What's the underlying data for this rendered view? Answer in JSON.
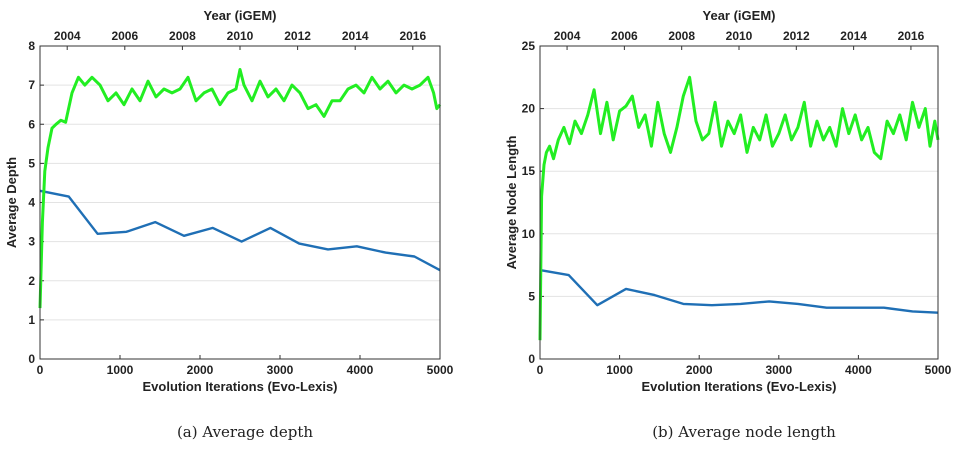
{
  "chart_data": [
    {
      "type": "line",
      "caption": "(a) Average depth",
      "xlabel": "Evolution Iterations (Evo-Lexis)",
      "ylabel": "Average Depth",
      "x2label": "Year (iGEM)",
      "xlim": [
        0,
        5000
      ],
      "ylim": [
        0,
        8
      ],
      "xticks": [
        "0",
        "1000",
        "2000",
        "3000",
        "4000",
        "5000"
      ],
      "yticks": [
        "0",
        "1",
        "2",
        "3",
        "4",
        "5",
        "6",
        "7",
        "8"
      ],
      "x2ticks": [
        "2004",
        "2006",
        "2008",
        "2010",
        "2012",
        "2014",
        "2016"
      ],
      "x2tick_positions": [
        340,
        1060,
        1780,
        2500,
        3220,
        3940,
        4660
      ],
      "grid": true,
      "series": [
        {
          "color": "#1f6fb5",
          "x": [
            0,
            360,
            720,
            1080,
            1440,
            1800,
            2160,
            2520,
            2880,
            3240,
            3600,
            3960,
            4320,
            4680,
            5000
          ],
          "y": [
            4.3,
            4.15,
            3.2,
            3.25,
            3.5,
            3.15,
            3.35,
            3.0,
            3.35,
            2.95,
            2.8,
            2.88,
            2.72,
            2.62,
            2.27
          ]
        },
        {
          "color": "#22ee22",
          "x": [
            0,
            30,
            60,
            100,
            150,
            200,
            260,
            320,
            400,
            480,
            560,
            650,
            750,
            850,
            950,
            1050,
            1150,
            1250,
            1350,
            1450,
            1550,
            1650,
            1750,
            1850,
            1950,
            2050,
            2150,
            2250,
            2350,
            2450,
            2500,
            2550,
            2650,
            2750,
            2850,
            2950,
            3050,
            3150,
            3250,
            3350,
            3450,
            3550,
            3650,
            3750,
            3850,
            3950,
            4050,
            4150,
            4250,
            4350,
            4450,
            4550,
            4650,
            4750,
            4850,
            4920,
            4960,
            5000
          ],
          "y": [
            1.3,
            3.5,
            4.8,
            5.4,
            5.9,
            6.0,
            6.1,
            6.05,
            6.8,
            7.2,
            7.0,
            7.2,
            7.0,
            6.6,
            6.8,
            6.5,
            6.9,
            6.6,
            7.1,
            6.7,
            6.9,
            6.8,
            6.9,
            7.2,
            6.6,
            6.8,
            6.9,
            6.5,
            6.8,
            6.9,
            7.4,
            7.0,
            6.6,
            7.1,
            6.7,
            6.9,
            6.6,
            7.0,
            6.8,
            6.4,
            6.5,
            6.2,
            6.6,
            6.6,
            6.9,
            7.0,
            6.8,
            7.2,
            6.9,
            7.1,
            6.8,
            7.0,
            6.9,
            7.0,
            7.2,
            6.8,
            6.4,
            6.5
          ]
        }
      ]
    },
    {
      "type": "line",
      "caption": "(b) Average node length",
      "xlabel": "Evolution Iterations (Evo-Lexis)",
      "ylabel": "Average Node Length",
      "x2label": "Year (iGEM)",
      "xlim": [
        0,
        5000
      ],
      "ylim": [
        0,
        25
      ],
      "xticks": [
        "0",
        "1000",
        "2000",
        "3000",
        "4000",
        "5000"
      ],
      "yticks": [
        "0",
        "5",
        "10",
        "15",
        "20",
        "25"
      ],
      "x2ticks": [
        "2004",
        "2006",
        "2008",
        "2010",
        "2012",
        "2014",
        "2016"
      ],
      "x2tick_positions": [
        340,
        1060,
        1780,
        2500,
        3220,
        3940,
        4660
      ],
      "grid": true,
      "series": [
        {
          "color": "#1f6fb5",
          "x": [
            0,
            360,
            720,
            1080,
            1440,
            1800,
            2160,
            2520,
            2880,
            3240,
            3600,
            3960,
            4320,
            4680,
            5000
          ],
          "y": [
            7.1,
            6.7,
            4.3,
            5.6,
            5.1,
            4.4,
            4.3,
            4.4,
            4.6,
            4.4,
            4.1,
            4.1,
            4.1,
            3.8,
            3.7
          ]
        },
        {
          "color": "#22ee22",
          "x": [
            0,
            20,
            50,
            80,
            120,
            170,
            230,
            300,
            370,
            440,
            520,
            600,
            680,
            760,
            840,
            920,
            1000,
            1080,
            1160,
            1240,
            1320,
            1400,
            1480,
            1560,
            1640,
            1720,
            1800,
            1880,
            1960,
            2040,
            2120,
            2200,
            2280,
            2360,
            2440,
            2520,
            2600,
            2680,
            2760,
            2840,
            2920,
            3000,
            3080,
            3160,
            3240,
            3320,
            3400,
            3480,
            3560,
            3640,
            3720,
            3800,
            3880,
            3960,
            4040,
            4120,
            4200,
            4280,
            4360,
            4440,
            4520,
            4600,
            4680,
            4760,
            4840,
            4900,
            4960,
            5000
          ],
          "y": [
            1.5,
            13.0,
            15.5,
            16.5,
            17.0,
            16.0,
            17.5,
            18.5,
            17.2,
            19.0,
            18.0,
            19.5,
            21.5,
            18.0,
            20.5,
            17.5,
            19.8,
            20.2,
            21.0,
            18.5,
            19.5,
            17.0,
            20.5,
            18.0,
            16.5,
            18.5,
            21.0,
            22.5,
            19.0,
            17.5,
            18.0,
            20.5,
            17.0,
            19.0,
            18.0,
            19.5,
            16.5,
            18.5,
            17.5,
            19.5,
            17.0,
            18.0,
            19.5,
            17.5,
            18.5,
            20.5,
            17.0,
            19.0,
            17.5,
            18.5,
            17.0,
            20.0,
            18.0,
            19.5,
            17.5,
            18.5,
            16.5,
            16.0,
            19.0,
            18.0,
            19.5,
            17.5,
            20.5,
            18.5,
            20.0,
            17.0,
            19.0,
            17.5
          ]
        }
      ]
    }
  ]
}
